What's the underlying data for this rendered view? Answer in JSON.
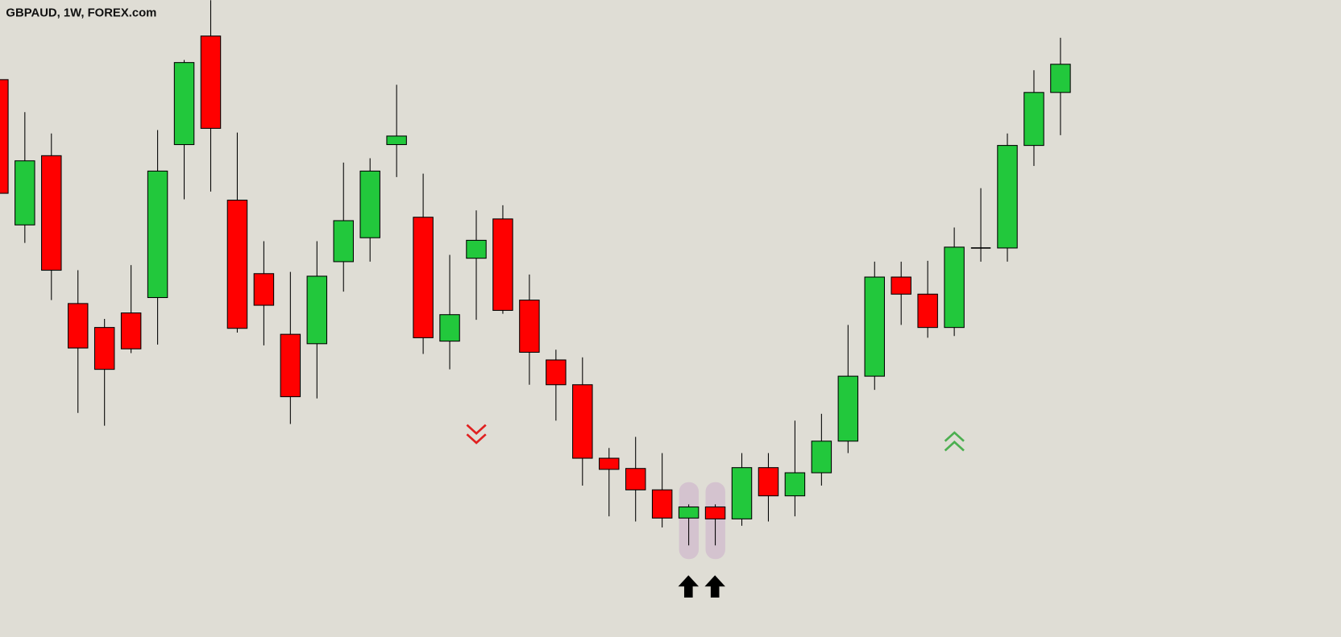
{
  "chart_data": {
    "type": "candlestick",
    "title": "GBPAUD, 1W, FOREX.com",
    "categories": [
      null,
      null,
      null,
      null,
      null,
      null,
      null,
      null,
      null,
      null,
      null,
      null,
      null,
      null,
      null,
      null,
      null,
      null,
      null,
      null,
      null,
      null,
      null,
      null,
      null,
      null,
      null,
      null,
      null,
      null,
      null,
      null,
      null,
      null,
      null,
      null,
      null,
      null,
      null,
      null,
      null
    ],
    "open": [
      652,
      482,
      563,
      390,
      362,
      379,
      397,
      576,
      703,
      511,
      425,
      354,
      343,
      439,
      467,
      576,
      491,
      346,
      443,
      489,
      394,
      324,
      295,
      209,
      197,
      172,
      139,
      152,
      138,
      198,
      165,
      192,
      229,
      305,
      421,
      401,
      362,
      455,
      455,
      575,
      637
    ],
    "high": [
      652,
      614,
      589,
      429,
      372,
      435,
      593,
      675,
      745,
      590,
      463,
      427,
      463,
      555,
      560,
      646,
      542,
      447,
      499,
      505,
      424,
      336,
      327,
      221,
      234,
      215,
      155,
      155,
      215,
      215,
      253,
      261,
      365,
      439,
      439,
      440,
      479,
      525,
      589,
      663,
      701
    ],
    "low": [
      519,
      461,
      394,
      262,
      247,
      332,
      342,
      512,
      521,
      356,
      341,
      249,
      279,
      404,
      439,
      538,
      331,
      313,
      371,
      378,
      295,
      253,
      177,
      141,
      135,
      128,
      107,
      107,
      130,
      135,
      141,
      177,
      215,
      289,
      365,
      350,
      352,
      439,
      439,
      551,
      587
    ],
    "close": [
      519,
      557,
      429,
      338,
      313,
      337,
      545,
      672,
      595,
      361,
      388,
      281,
      422,
      487,
      545,
      586,
      350,
      377,
      464,
      382,
      333,
      295,
      209,
      196,
      172,
      139,
      152,
      138,
      198,
      165,
      192,
      229,
      305,
      421,
      401,
      362,
      456,
      455,
      575,
      637,
      670
    ],
    "up_color": "#22c83c",
    "down_color": "#ff0000",
    "ylim": [
      0,
      745
    ]
  }
}
